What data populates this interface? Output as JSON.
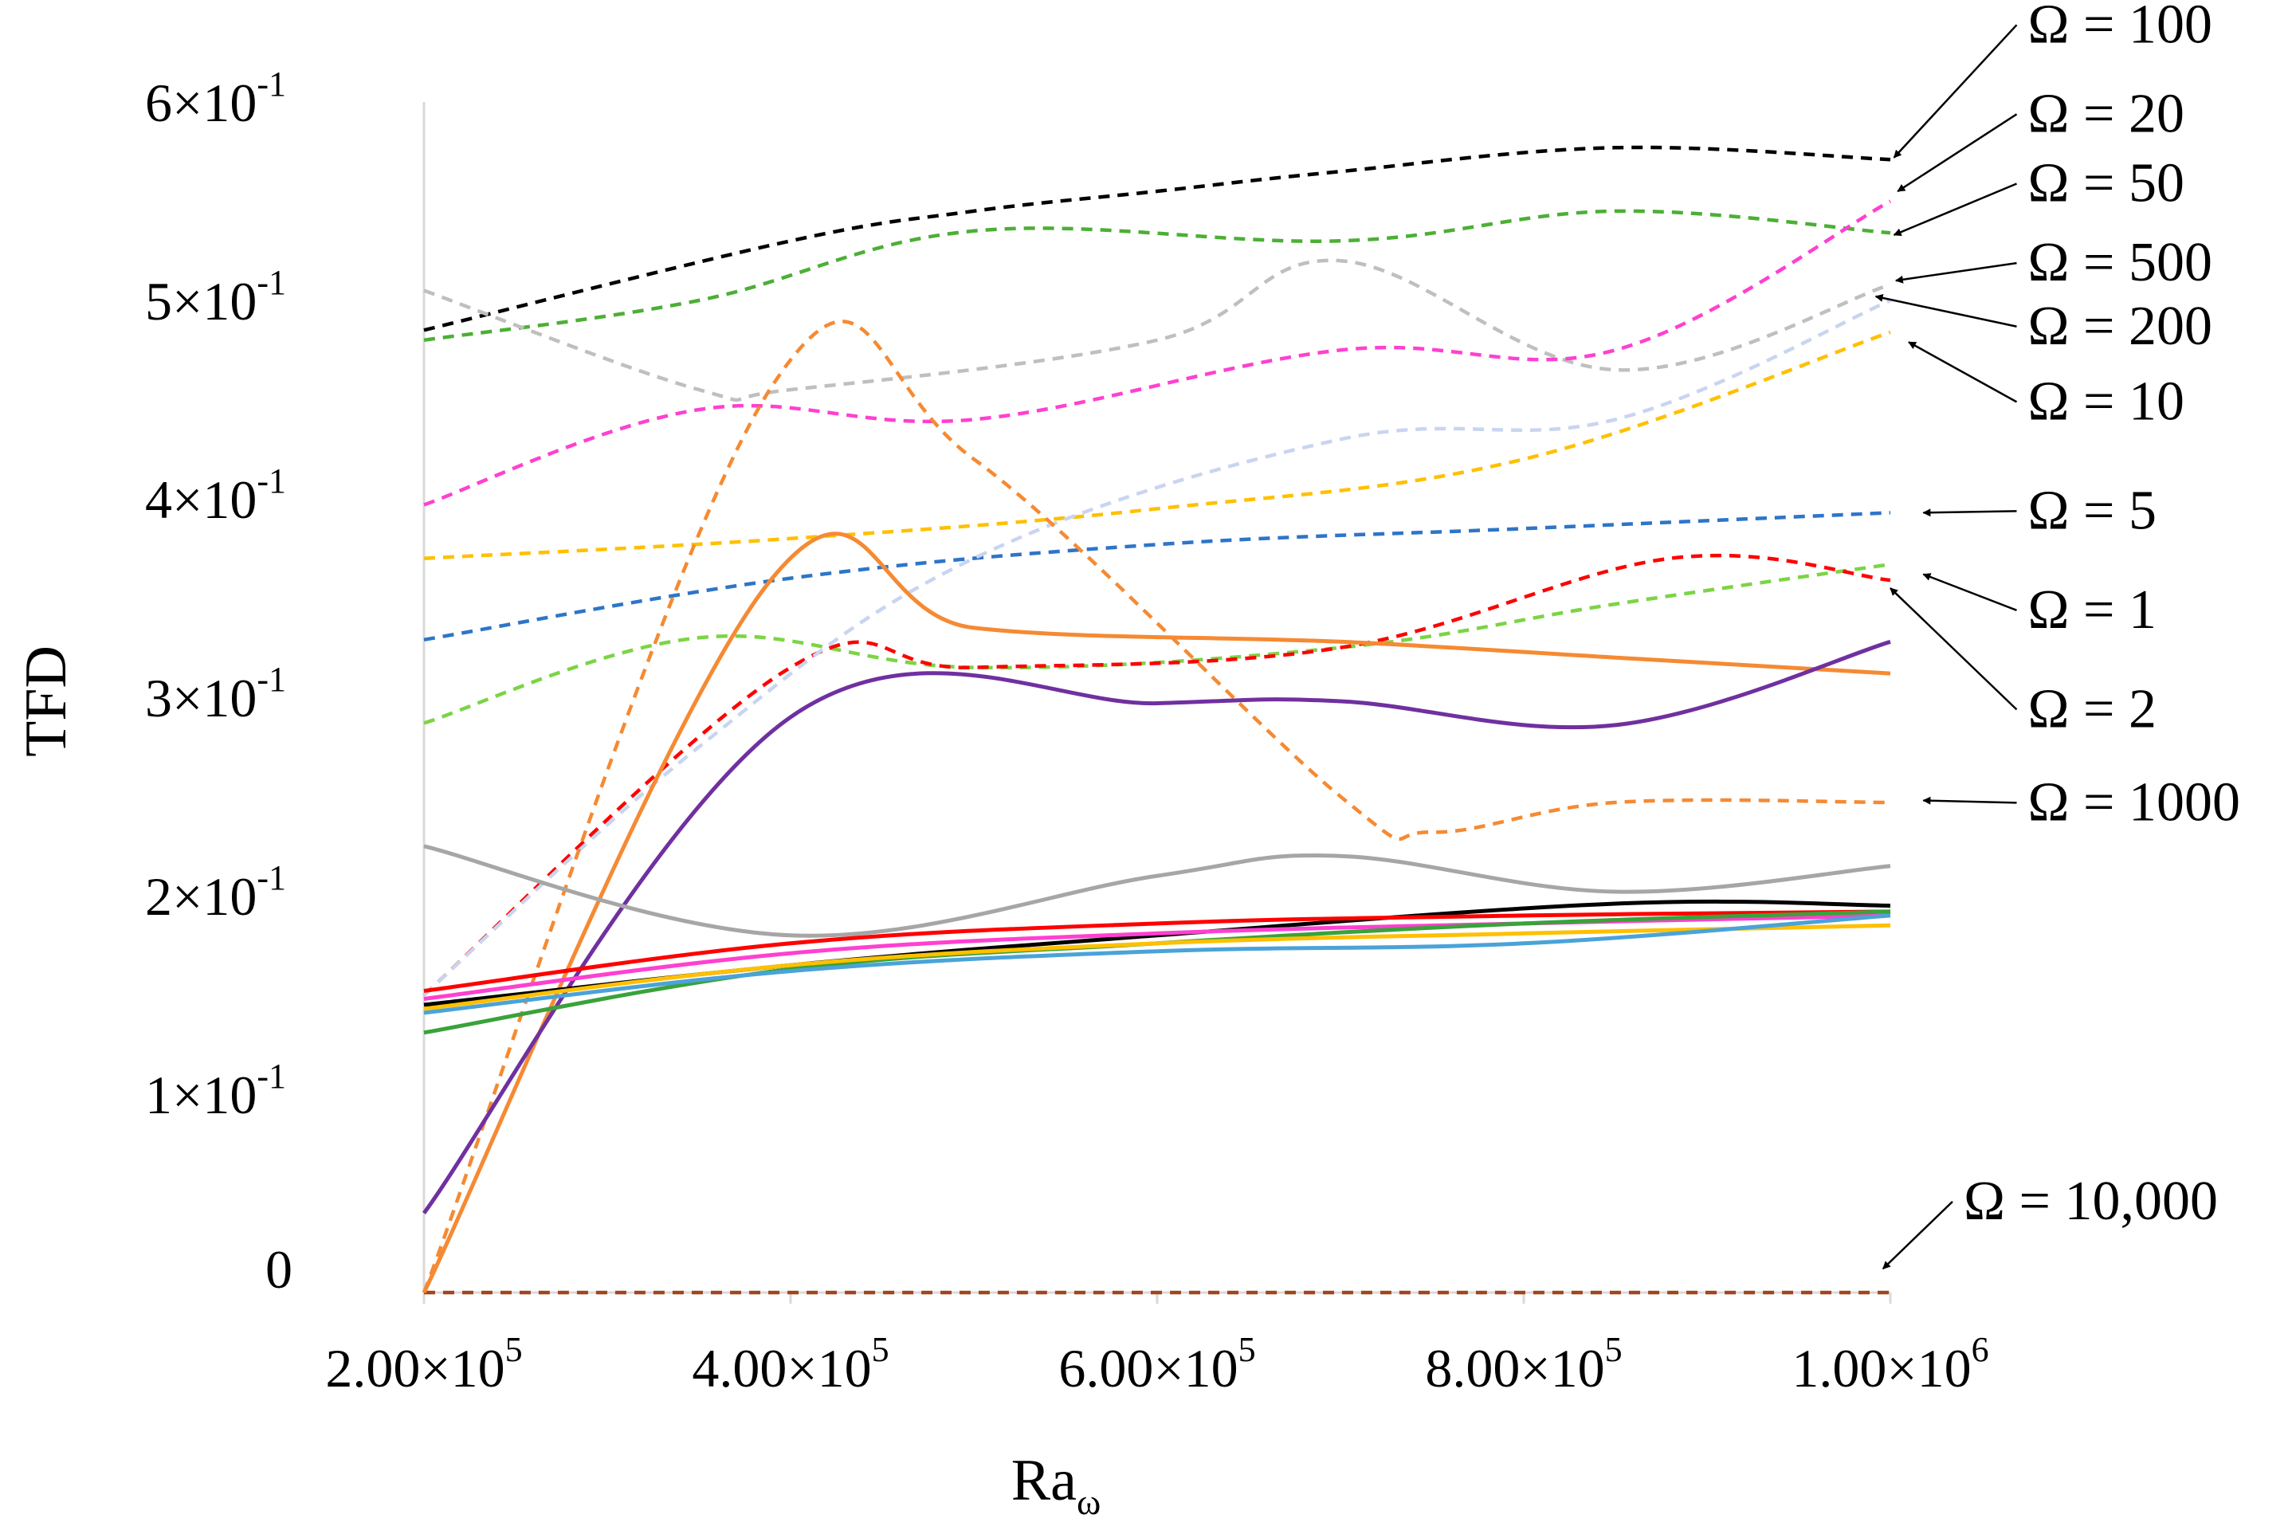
{
  "chart_data": {
    "type": "line",
    "title": "",
    "xlabel": "Ra",
    "xlabel_sub": "ω",
    "ylabel": "TFD",
    "xlim": [
      200000,
      1000000
    ],
    "ylim": [
      0,
      0.6
    ],
    "x": [
      200000,
      400000,
      600000,
      800000,
      1000000
    ],
    "x_ticks": [
      {
        "value": 200000,
        "mant": "2.00×10",
        "exp": "5"
      },
      {
        "value": 400000,
        "mant": "4.00×10",
        "exp": "5"
      },
      {
        "value": 600000,
        "mant": "6.00×10",
        "exp": "5"
      },
      {
        "value": 800000,
        "mant": "8.00×10",
        "exp": "5"
      },
      {
        "value": 1000000,
        "mant": "1.00×10",
        "exp": "6"
      }
    ],
    "y_ticks": [
      {
        "value": 0,
        "mant": "0",
        "exp": ""
      },
      {
        "value": 0.1,
        "mant": "1×10",
        "exp": "-1"
      },
      {
        "value": 0.2,
        "mant": "2×10",
        "exp": "-1"
      },
      {
        "value": 0.3,
        "mant": "3×10",
        "exp": "-1"
      },
      {
        "value": 0.4,
        "mant": "4×10",
        "exp": "-1"
      },
      {
        "value": 0.5,
        "mant": "5×10",
        "exp": "-1"
      },
      {
        "value": 0.6,
        "mant": "6×10",
        "exp": "-1"
      }
    ],
    "series": [
      {
        "name": "Ω = 100 (dashed)",
        "style": "dashed",
        "color": "#000000",
        "x": [
          200000,
          400000,
          500000,
          600000,
          700000,
          850000,
          1000000
        ],
        "values": [
          0.485,
          0.53,
          0.545,
          0.555,
          0.565,
          0.577,
          0.571
        ]
      },
      {
        "name": "Ω = 50 (dashed)",
        "style": "dashed",
        "color": "#4caf35",
        "x": [
          200000,
          350000,
          500000,
          700000,
          850000,
          1000000
        ],
        "values": [
          0.48,
          0.5,
          0.535,
          0.53,
          0.545,
          0.534
        ]
      },
      {
        "name": "Ω = 500 (dashed)",
        "style": "dashed",
        "color": "#bfbfbf",
        "x": [
          200000,
          350000,
          400000,
          600000,
          700000,
          850000,
          1000000
        ],
        "values": [
          0.505,
          0.455,
          0.455,
          0.48,
          0.52,
          0.465,
          0.508
        ]
      },
      {
        "name": "Ω = 20 (dashed)",
        "style": "dashed",
        "color": "#ff40d0",
        "x": [
          200000,
          350000,
          500000,
          700000,
          850000,
          1000000
        ],
        "values": [
          0.397,
          0.445,
          0.44,
          0.475,
          0.475,
          0.55
        ]
      },
      {
        "name": "Ω = 10 (dashed)",
        "style": "dashed",
        "color": "#ffc000",
        "x": [
          200000,
          400000,
          600000,
          800000,
          1000000
        ],
        "values": [
          0.37,
          0.38,
          0.395,
          0.42,
          0.484
        ]
      },
      {
        "name": "Ω = 5 (dashed)",
        "style": "dashed",
        "color": "#2e75c8",
        "x": [
          200000,
          400000,
          600000,
          800000,
          1000000
        ],
        "values": [
          0.329,
          0.36,
          0.377,
          0.385,
          0.393
        ]
      },
      {
        "name": "Ω = 1 (dashed)",
        "style": "dashed",
        "color": "#7cd445",
        "x": [
          200000,
          350000,
          500000,
          700000,
          850000,
          1000000
        ],
        "values": [
          0.287,
          0.33,
          0.315,
          0.325,
          0.347,
          0.367
        ]
      },
      {
        "name": "Ω = 2 (dashed)",
        "style": "dashed",
        "color": "#ff0000",
        "x": [
          200000,
          400000,
          500000,
          700000,
          880000,
          1000000
        ],
        "values": [
          0.15,
          0.315,
          0.315,
          0.325,
          0.37,
          0.359
        ]
      },
      {
        "name": "Ω = 200 (dashed)",
        "style": "dashed",
        "color": "#c9d5f0",
        "x": [
          200000,
          350000,
          500000,
          700000,
          850000,
          1000000
        ],
        "values": [
          0.15,
          0.275,
          0.37,
          0.43,
          0.44,
          0.5
        ]
      },
      {
        "name": "Ω = 1000 (dashed)",
        "style": "dashed",
        "color": "#f58a33",
        "x": [
          200000,
          390000,
          500000,
          700000,
          750000,
          850000,
          1000000
        ],
        "values": [
          0.0,
          0.457,
          0.42,
          0.25,
          0.232,
          0.247,
          0.247
        ]
      },
      {
        "name": "Ω = 10,000 (dashed)",
        "style": "dashed",
        "color": "#a0461a",
        "x": [
          200000,
          400000,
          600000,
          800000,
          1000000
        ],
        "values": [
          0.0,
          0.0,
          0.0,
          0.0,
          0.0
        ]
      },
      {
        "name": "solid orange",
        "style": "solid",
        "color": "#f58a33",
        "x": [
          200000,
          390000,
          500000,
          700000,
          850000,
          1000000
        ],
        "values": [
          0.0,
          0.36,
          0.335,
          0.328,
          0.32,
          0.312
        ]
      },
      {
        "name": "solid purple",
        "style": "solid",
        "color": "#7030a0",
        "x": [
          200000,
          400000,
          600000,
          700000,
          850000,
          1000000
        ],
        "values": [
          0.04,
          0.29,
          0.297,
          0.298,
          0.286,
          0.328
        ]
      },
      {
        "name": "solid gray",
        "style": "solid",
        "color": "#a6a6a6",
        "x": [
          200000,
          400000,
          600000,
          700000,
          850000,
          1000000
        ],
        "values": [
          0.225,
          0.18,
          0.21,
          0.22,
          0.202,
          0.215
        ]
      },
      {
        "name": "solid black",
        "style": "solid",
        "color": "#000000",
        "x": [
          200000,
          400000,
          600000,
          850000,
          1000000
        ],
        "values": [
          0.145,
          0.165,
          0.18,
          0.196,
          0.195
        ]
      },
      {
        "name": "solid red",
        "style": "solid",
        "color": "#ff0000",
        "x": [
          200000,
          400000,
          600000,
          800000,
          1000000
        ],
        "values": [
          0.152,
          0.176,
          0.186,
          0.19,
          0.192
        ]
      },
      {
        "name": "solid pink",
        "style": "solid",
        "color": "#ff40d0",
        "x": [
          200000,
          400000,
          600000,
          800000,
          1000000
        ],
        "values": [
          0.148,
          0.171,
          0.181,
          0.186,
          0.19
        ]
      },
      {
        "name": "solid dark green",
        "style": "solid",
        "color": "#3aa23a",
        "x": [
          200000,
          400000,
          600000,
          800000,
          1000000
        ],
        "values": [
          0.131,
          0.163,
          0.176,
          0.186,
          0.192
        ]
      },
      {
        "name": "solid yellow",
        "style": "solid",
        "color": "#ffc000",
        "x": [
          200000,
          400000,
          600000,
          800000,
          1000000
        ],
        "values": [
          0.143,
          0.165,
          0.176,
          0.181,
          0.185
        ]
      },
      {
        "name": "solid blue",
        "style": "solid",
        "color": "#4aa3d8",
        "x": [
          200000,
          400000,
          600000,
          800000,
          1000000
        ],
        "values": [
          0.141,
          0.162,
          0.172,
          0.176,
          0.19
        ]
      }
    ],
    "annotations": [
      {
        "text": "Ω = 100",
        "points_to": [
          1000000,
          0.571
        ],
        "text_at": [
          1075000,
          0.63
        ],
        "tip_at": [
          1002000,
          0.572
        ]
      },
      {
        "text": "Ω = 20",
        "points_to": [
          1000000,
          0.55
        ],
        "text_at": [
          1075000,
          0.585
        ],
        "tip_at": [
          1004000,
          0.555
        ]
      },
      {
        "text": "Ω = 50",
        "points_to": [
          1000000,
          0.534
        ],
        "text_at": [
          1075000,
          0.55
        ],
        "tip_at": [
          1002000,
          0.533
        ]
      },
      {
        "text": "Ω = 500",
        "points_to": [
          1000000,
          0.508
        ],
        "text_at": [
          1075000,
          0.51
        ],
        "tip_at": [
          1003000,
          0.51
        ]
      },
      {
        "text": "Ω = 200",
        "points_to": [
          1000000,
          0.5
        ],
        "text_at": [
          1075000,
          0.478
        ],
        "tip_at": [
          992000,
          0.502
        ]
      },
      {
        "text": "Ω = 10",
        "points_to": [
          1000000,
          0.484
        ],
        "text_at": [
          1075000,
          0.44
        ],
        "tip_at": [
          1010000,
          0.479
        ]
      },
      {
        "text": "Ω = 5",
        "points_to": [
          1000000,
          0.393
        ],
        "text_at": [
          1075000,
          0.385
        ],
        "tip_at": [
          1018000,
          0.393
        ]
      },
      {
        "text": "Ω = 1",
        "points_to": [
          1000000,
          0.367
        ],
        "text_at": [
          1075000,
          0.335
        ],
        "tip_at": [
          1018000,
          0.362
        ]
      },
      {
        "text": "Ω = 2",
        "points_to": [
          1000000,
          0.359
        ],
        "text_at": [
          1075000,
          0.285
        ],
        "tip_at": [
          1000000,
          0.355
        ]
      },
      {
        "text": "Ω = 1000",
        "points_to": [
          1000000,
          0.247
        ],
        "text_at": [
          1075000,
          0.238
        ],
        "tip_at": [
          1018000,
          0.248
        ]
      },
      {
        "text": "Ω = 10,000",
        "points_to": [
          1000000,
          0.0
        ],
        "text_at": [
          1040000,
          0.037
        ],
        "tip_at": [
          996000,
          0.012
        ]
      }
    ]
  }
}
